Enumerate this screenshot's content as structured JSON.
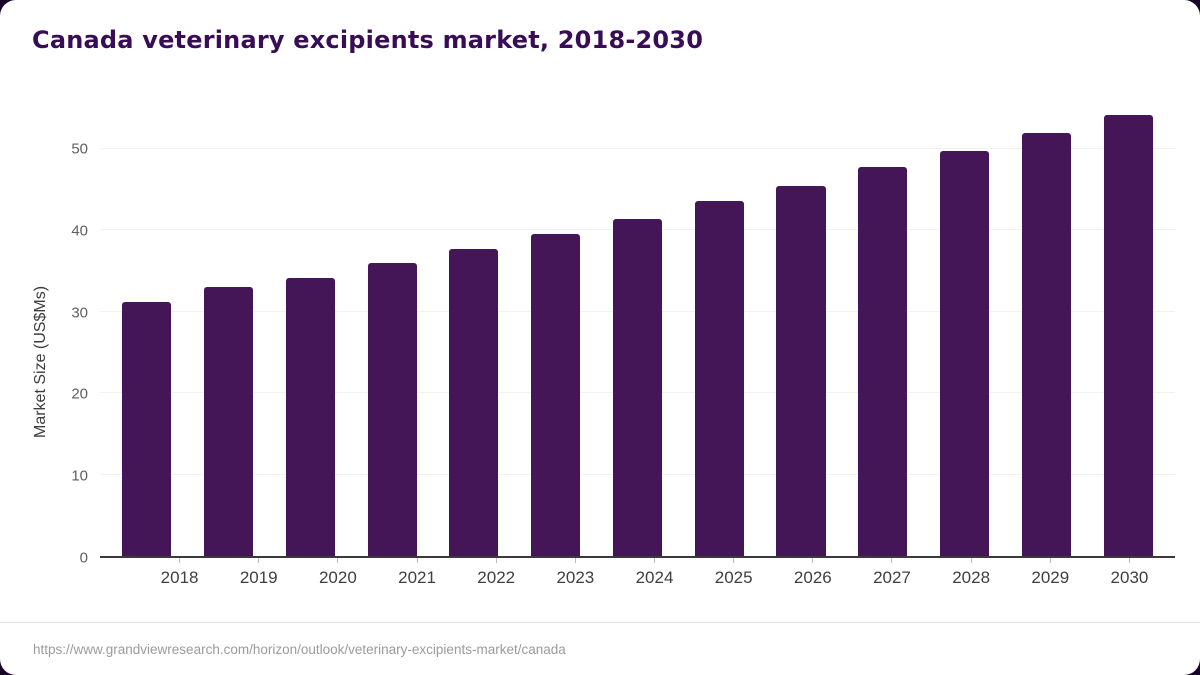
{
  "page": {
    "title": "Canada veterinary excipients market, 2018-2030",
    "source_url": "https://www.grandviewresearch.com/horizon/outlook/veterinary-excipients-market/canada"
  },
  "chart_data": {
    "type": "bar",
    "title": "Canada veterinary excipients market, 2018-2030",
    "categories": [
      "2018",
      "2019",
      "2020",
      "2021",
      "2022",
      "2023",
      "2024",
      "2025",
      "2026",
      "2027",
      "2028",
      "2029",
      "2030"
    ],
    "values": [
      31.2,
      33.0,
      34.1,
      36.0,
      37.7,
      39.5,
      41.4,
      43.6,
      45.4,
      47.8,
      49.7,
      51.9,
      54.1
    ],
    "xlabel": "",
    "ylabel": "Market Size (US$Ms)",
    "ylim": [
      0,
      56
    ],
    "yticks": [
      0,
      10,
      20,
      30,
      40,
      50
    ],
    "grid": true,
    "legend": "none",
    "bar_color": "#441557"
  }
}
